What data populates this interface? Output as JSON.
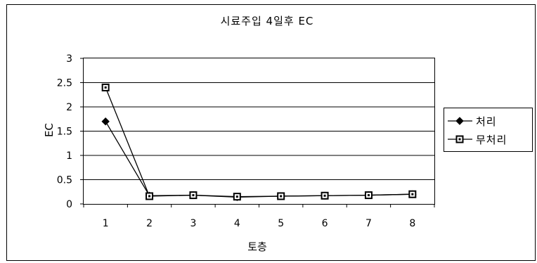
{
  "chart_data": {
    "type": "line",
    "title": "시료주입 4일후 EC",
    "xlabel": "토층",
    "ylabel": "EC",
    "ylim": [
      0,
      3
    ],
    "yticks": [
      "0",
      "0.5",
      "1",
      "1.5",
      "2",
      "2.5",
      "3"
    ],
    "categories": [
      "1",
      "2",
      "3",
      "4",
      "5",
      "6",
      "7",
      "8"
    ],
    "grid": true,
    "legend_position": "right",
    "series": [
      {
        "name": "처리",
        "marker": "diamond",
        "color": "#000000",
        "values": [
          1.7,
          0.17,
          0.18,
          0.14,
          0.16,
          0.17,
          0.18,
          0.2
        ]
      },
      {
        "name": "무처리",
        "marker": "square",
        "color": "#000000",
        "values": [
          2.4,
          0.16,
          0.18,
          0.15,
          0.16,
          0.17,
          0.18,
          0.2
        ]
      }
    ]
  }
}
